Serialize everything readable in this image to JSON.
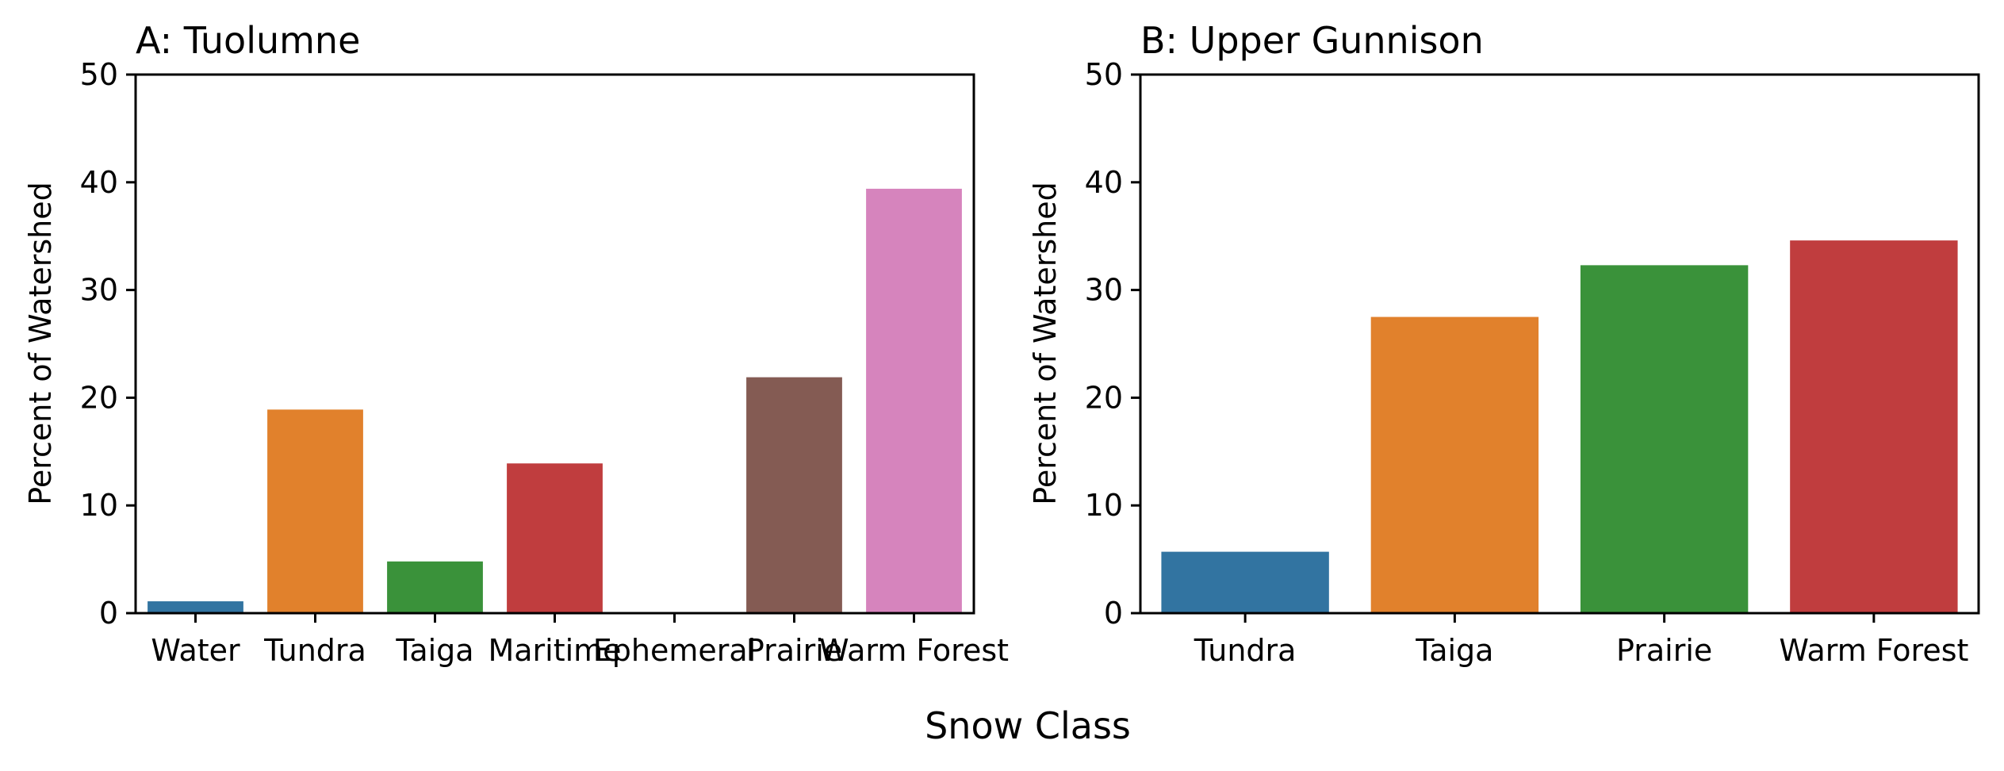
{
  "chart_data": [
    {
      "type": "bar",
      "title": "A: Tuolumne",
      "xlabel": "",
      "ylabel": "Percent of Watershed",
      "ylim": [
        0,
        50
      ],
      "yticks": [
        "0",
        "10",
        "20",
        "30",
        "40",
        "50"
      ],
      "grid": false,
      "categories": [
        "Water",
        "Tundra",
        "Taiga",
        "Maritime",
        "Ephemeral",
        "Prairie",
        "Warm Forest"
      ],
      "values": [
        1.1,
        18.9,
        4.8,
        13.9,
        0,
        21.9,
        39.4
      ],
      "colors": [
        "#3274a1",
        "#e1812c",
        "#3a923a",
        "#c03d3e",
        "#9372b2",
        "#845b53",
        "#d684bd"
      ]
    },
    {
      "type": "bar",
      "title": "B: Upper Gunnison",
      "xlabel": "",
      "ylabel": "Percent of Watershed",
      "ylim": [
        0,
        50
      ],
      "yticks": [
        "0",
        "10",
        "20",
        "30",
        "40",
        "50"
      ],
      "grid": false,
      "categories": [
        "Tundra",
        "Taiga",
        "Prairie",
        "Warm Forest"
      ],
      "values": [
        5.7,
        27.5,
        32.3,
        34.6
      ],
      "colors": [
        "#3274a1",
        "#e1812c",
        "#3a923a",
        "#c03d3e"
      ]
    }
  ],
  "shared_xlabel": "Snow Class"
}
